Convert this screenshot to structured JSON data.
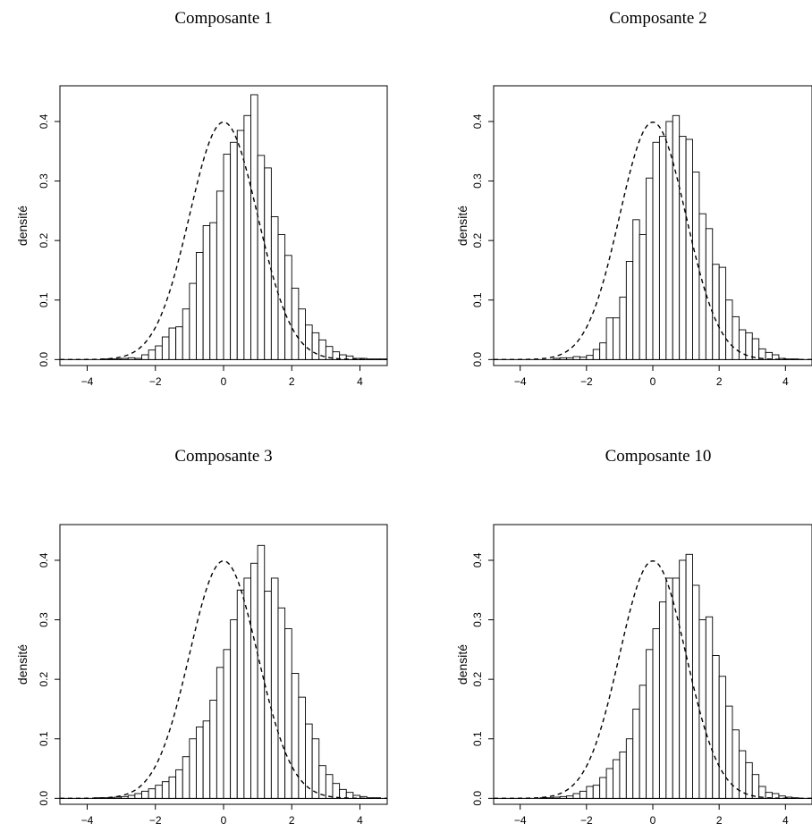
{
  "chart_data": [
    {
      "type": "bar",
      "title": "Composante 1",
      "xlabel": "",
      "ylabel": "densité",
      "xlim": [
        -4.8,
        4.8
      ],
      "ylim": [
        -0.01,
        0.46
      ],
      "xticks": [
        -4,
        -2,
        0,
        2,
        4
      ],
      "yticks": [
        0.0,
        0.1,
        0.2,
        0.3,
        0.4
      ],
      "bin_width": 0.2,
      "bin_start": -4.8,
      "values": [
        0,
        0,
        0,
        0,
        0,
        0,
        0.001,
        0.001,
        0.001,
        0.002,
        0.003,
        0.002,
        0.008,
        0.016,
        0.023,
        0.038,
        0.053,
        0.055,
        0.085,
        0.128,
        0.18,
        0.225,
        0.23,
        0.283,
        0.345,
        0.365,
        0.385,
        0.41,
        0.445,
        0.343,
        0.322,
        0.24,
        0.21,
        0.175,
        0.12,
        0.085,
        0.058,
        0.045,
        0.033,
        0.022,
        0.013,
        0.008,
        0.006,
        0.002,
        0.002,
        0.001,
        0.001,
        0.001
      ],
      "overlay": {
        "type": "dashed-density",
        "name": "N(0,1)"
      }
    },
    {
      "type": "bar",
      "title": "Composante 2",
      "xlabel": "",
      "ylabel": "densité",
      "xlim": [
        -4.8,
        4.8
      ],
      "ylim": [
        -0.01,
        0.46
      ],
      "xticks": [
        -4,
        -2,
        0,
        2,
        4
      ],
      "yticks": [
        0.0,
        0.1,
        0.2,
        0.3,
        0.4
      ],
      "bin_width": 0.2,
      "bin_start": -4.8,
      "values": [
        0,
        0,
        0,
        0,
        0,
        0,
        0,
        0,
        0,
        0.002,
        0.003,
        0.003,
        0.005,
        0.004,
        0.007,
        0.017,
        0.028,
        0.07,
        0.07,
        0.105,
        0.165,
        0.235,
        0.21,
        0.305,
        0.365,
        0.375,
        0.4,
        0.41,
        0.375,
        0.37,
        0.315,
        0.245,
        0.22,
        0.16,
        0.155,
        0.1,
        0.072,
        0.05,
        0.045,
        0.035,
        0.018,
        0.012,
        0.008,
        0.002,
        0.001,
        0.001,
        0,
        0
      ],
      "overlay": {
        "type": "dashed-density",
        "name": "N(0,1)"
      }
    },
    {
      "type": "bar",
      "title": "Composante 3",
      "xlabel": "",
      "ylabel": "densité",
      "xlim": [
        -4.8,
        4.8
      ],
      "ylim": [
        -0.01,
        0.46
      ],
      "xticks": [
        -4,
        -2,
        0,
        2,
        4
      ],
      "yticks": [
        0.0,
        0.1,
        0.2,
        0.3,
        0.4
      ],
      "bin_width": 0.2,
      "bin_start": -4.8,
      "values": [
        0,
        0,
        0,
        0,
        0,
        0.001,
        0.001,
        0.001,
        0.002,
        0.003,
        0.005,
        0.008,
        0.012,
        0.016,
        0.022,
        0.028,
        0.036,
        0.048,
        0.07,
        0.1,
        0.12,
        0.13,
        0.165,
        0.22,
        0.25,
        0.3,
        0.35,
        0.37,
        0.395,
        0.425,
        0.348,
        0.37,
        0.32,
        0.285,
        0.21,
        0.17,
        0.125,
        0.1,
        0.055,
        0.04,
        0.025,
        0.015,
        0.01,
        0.005,
        0.003,
        0.001,
        0.001,
        0
      ],
      "overlay": {
        "type": "dashed-density",
        "name": "N(0,1)"
      }
    },
    {
      "type": "bar",
      "title": "Composante 10",
      "xlabel": "",
      "ylabel": "densité",
      "xlim": [
        -4.8,
        4.8
      ],
      "ylim": [
        -0.01,
        0.46
      ],
      "xticks": [
        -4,
        -2,
        0,
        2,
        4
      ],
      "yticks": [
        0.0,
        0.1,
        0.2,
        0.3,
        0.4
      ],
      "bin_width": 0.2,
      "bin_start": -4.8,
      "values": [
        0,
        0,
        0,
        0,
        0,
        0,
        0,
        0.001,
        0.001,
        0.002,
        0.003,
        0.004,
        0.008,
        0.012,
        0.02,
        0.022,
        0.035,
        0.05,
        0.065,
        0.078,
        0.1,
        0.15,
        0.19,
        0.25,
        0.285,
        0.33,
        0.37,
        0.37,
        0.4,
        0.41,
        0.358,
        0.3,
        0.305,
        0.24,
        0.205,
        0.155,
        0.115,
        0.08,
        0.06,
        0.04,
        0.02,
        0.01,
        0.008,
        0.004,
        0.002,
        0.001,
        0,
        0
      ],
      "overlay": {
        "type": "dashed-density",
        "name": "N(0,1)"
      }
    }
  ]
}
